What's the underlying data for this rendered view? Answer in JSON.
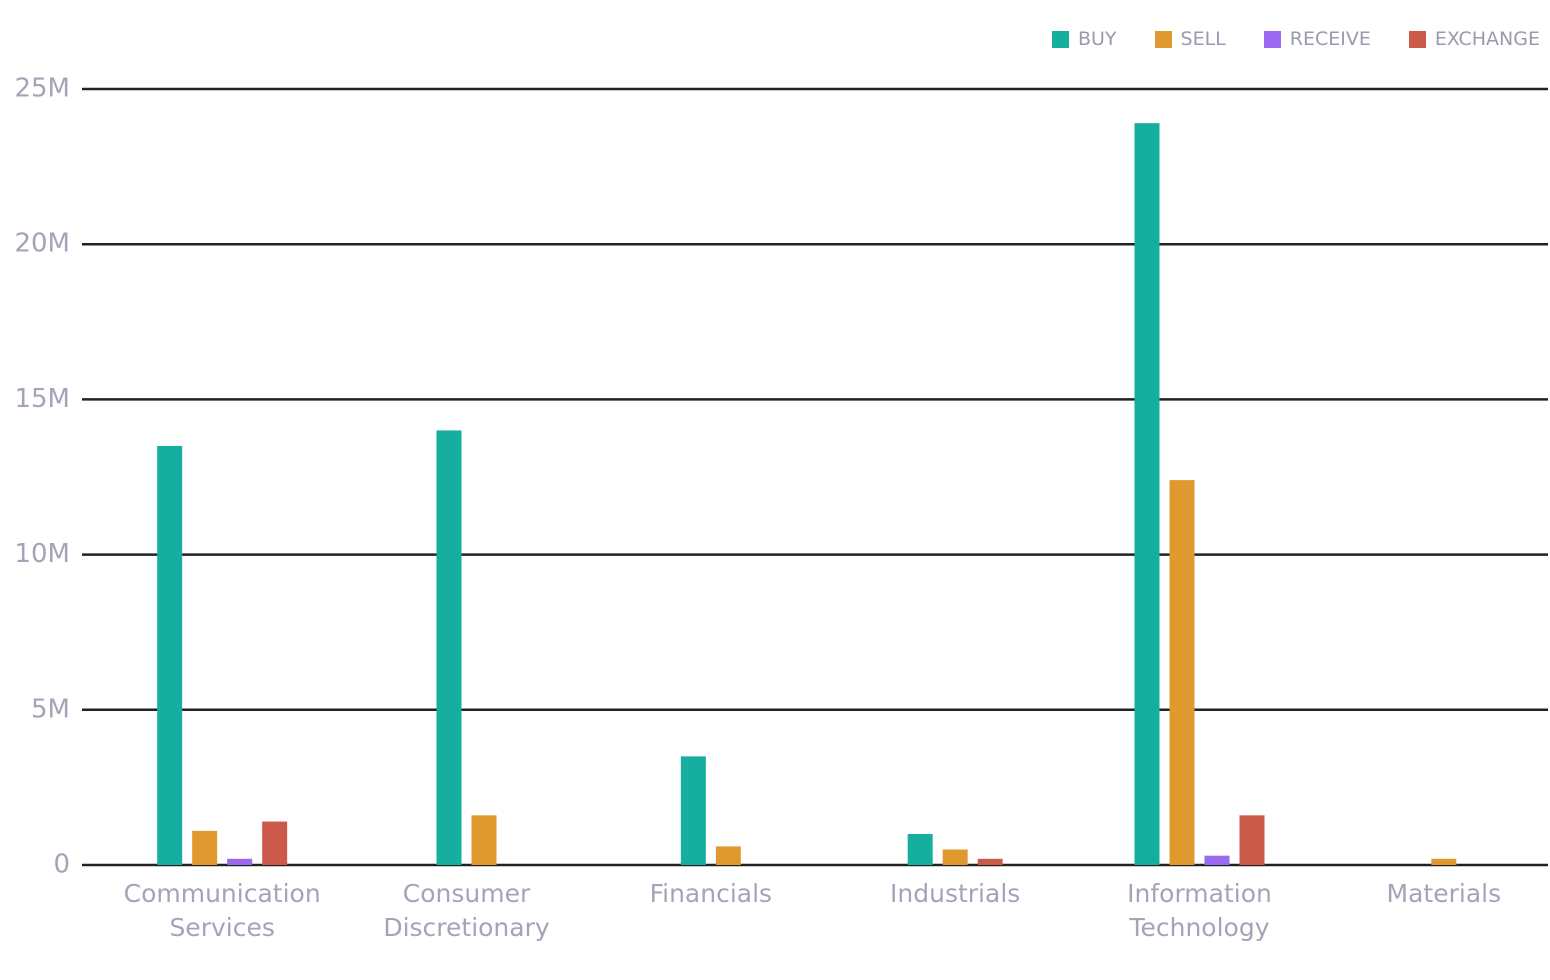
{
  "chart_data": {
    "type": "bar",
    "categories": [
      "Communication Services",
      "Consumer Discretionary",
      "Financials",
      "Industrials",
      "Information Technology",
      "Materials"
    ],
    "series": [
      {
        "name": "BUY",
        "color": "#16ae9f",
        "values": [
          13.5,
          14.0,
          3.5,
          1.0,
          23.9,
          null
        ]
      },
      {
        "name": "SELL",
        "color": "#e0992e",
        "values": [
          1.1,
          1.6,
          0.6,
          0.5,
          12.4,
          0.2
        ]
      },
      {
        "name": "RECEIVE",
        "color": "#9a6af0",
        "values": [
          0.2,
          null,
          null,
          null,
          0.3,
          null
        ]
      },
      {
        "name": "EXCHANGE",
        "color": "#cc5a4a",
        "values": [
          1.4,
          null,
          null,
          0.2,
          1.6,
          null
        ]
      }
    ],
    "ylim": [
      0,
      25
    ],
    "yticks": [
      0,
      {
        "value": 5,
        "label": "5M"
      },
      {
        "value": 10,
        "label": "10M"
      },
      {
        "value": 15,
        "label": "15M"
      },
      {
        "value": 20,
        "label": "20M"
      },
      {
        "value": 25,
        "label": "25M"
      }
    ],
    "grid": true,
    "legend": "top-right"
  }
}
